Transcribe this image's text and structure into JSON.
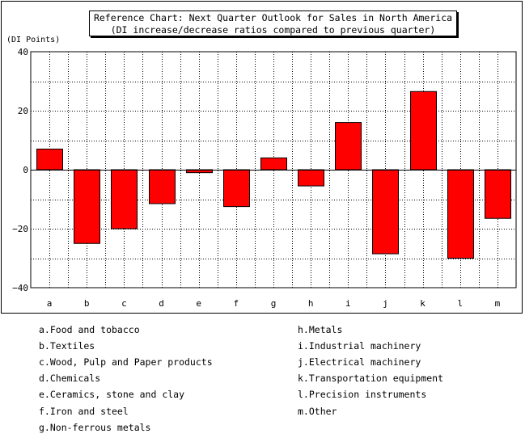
{
  "chart_data": {
    "type": "bar",
    "title": "Reference Chart: Next Quarter Outlook for Sales in North America",
    "subtitle": "(DI increase/decrease ratios compared to previous quarter)",
    "ylabel": "(DI Points)",
    "ylim": [
      -40,
      40
    ],
    "yticks": [
      40,
      20,
      0,
      -20,
      -40
    ],
    "ytick_labels": [
      "40",
      "20",
      "0",
      "−20",
      "−40"
    ],
    "grid": true,
    "categories": [
      "a",
      "b",
      "c",
      "d",
      "e",
      "f",
      "g",
      "h",
      "i",
      "j",
      "k",
      "l",
      "m"
    ],
    "values": [
      7,
      -25,
      -20,
      -11.5,
      -1,
      -12.5,
      4,
      -5.5,
      16,
      -28.5,
      26.5,
      -30,
      -16.5
    ],
    "bar_color": "#ff0000"
  },
  "legend": {
    "left": [
      "a.Food and tobacco",
      "b.Textiles",
      "c.Wood, Pulp and Paper products",
      "d.Chemicals",
      "e.Ceramics, stone and clay",
      "f.Iron and steel",
      "g.Non-ferrous metals"
    ],
    "right": [
      "h.Metals",
      "i.Industrial machinery",
      "j.Electrical machinery",
      "k.Transportation equipment",
      "l.Precision instruments",
      "m.Other"
    ]
  }
}
